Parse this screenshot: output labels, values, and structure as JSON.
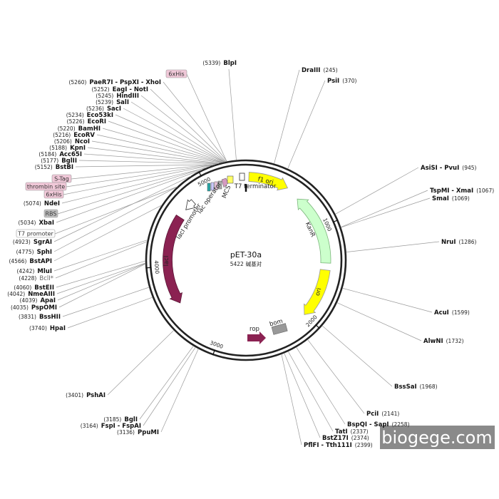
{
  "map": {
    "title": "pET-30a",
    "length": 5422,
    "length_unit": "碱基对",
    "ticks": [
      1000,
      2000,
      3000,
      4000,
      5000
    ],
    "sites": [
      {
        "name": "BlpI",
        "position": 5339,
        "position_label": "(5339)"
      },
      {
        "name": "DraIII",
        "position": 245,
        "position_label": "(245)"
      },
      {
        "name": "PsiI",
        "position": 370,
        "position_label": "(370)"
      },
      {
        "name": "AsiSI - PvuI",
        "position": 945,
        "position_label": "(945)"
      },
      {
        "name": "TspMI - XmaI",
        "position": 1067,
        "position_label": "(1067)"
      },
      {
        "name": "SmaI",
        "position": 1069,
        "position_label": "(1069)"
      },
      {
        "name": "NruI",
        "position": 1286,
        "position_label": "(1286)"
      },
      {
        "name": "AcuI",
        "position": 1599,
        "position_label": "(1599)"
      },
      {
        "name": "AlwNI",
        "position": 1732,
        "position_label": "(1732)"
      },
      {
        "name": "BssSaI",
        "position": 1968,
        "position_label": "(1968)"
      },
      {
        "name": "PciI",
        "position": 2141,
        "position_label": "(2141)"
      },
      {
        "name": "BspQI - SapI",
        "position": 2258,
        "position_label": "(2258)"
      },
      {
        "name": "TatI",
        "position": 2337,
        "position_label": "(2337)"
      },
      {
        "name": "BstZ17I",
        "position": 2374,
        "position_label": "(2374)"
      },
      {
        "name": "PflFI - Tth111I",
        "position": 2399,
        "position_label": "(2399)"
      },
      {
        "name": "PaeR7I - PspXI - XhoI",
        "position": 5260,
        "position_label": "(5260)"
      },
      {
        "name": "EagI - NotI",
        "position": 5252,
        "position_label": "(5252)"
      },
      {
        "name": "HindIII",
        "position": 5245,
        "position_label": "(5245)"
      },
      {
        "name": "SalI",
        "position": 5239,
        "position_label": "(5239)"
      },
      {
        "name": "SacI",
        "position": 5236,
        "position_label": "(5236)"
      },
      {
        "name": "Eco53kI",
        "position": 5234,
        "position_label": "(5234)"
      },
      {
        "name": "EcoRI",
        "position": 5226,
        "position_label": "(5226)"
      },
      {
        "name": "BamHI",
        "position": 5220,
        "position_label": "(5220)"
      },
      {
        "name": "EcoRV",
        "position": 5216,
        "position_label": "(5216)"
      },
      {
        "name": "NcoI",
        "position": 5206,
        "position_label": "(5206)"
      },
      {
        "name": "KpnI",
        "position": 5188,
        "position_label": "(5188)"
      },
      {
        "name": "Acc65I",
        "position": 5184,
        "position_label": "(5184)"
      },
      {
        "name": "BglII",
        "position": 5177,
        "position_label": "(5177)"
      },
      {
        "name": "BstBI",
        "position": 5152,
        "position_label": "(5152)"
      },
      {
        "name": "NdeI",
        "position": 5074,
        "position_label": "(5074)"
      },
      {
        "name": "XbaI",
        "position": 5034,
        "position_label": "(5034)"
      },
      {
        "name": "SgrAI",
        "position": 4923,
        "position_label": "(4923)"
      },
      {
        "name": "SphI",
        "position": 4775,
        "position_label": "(4775)"
      },
      {
        "name": "BstAPI",
        "position": 4566,
        "position_label": "(4566)"
      },
      {
        "name": "MluI",
        "position": 4242,
        "position_label": "(4242)"
      },
      {
        "name": "BclI*",
        "position": 4228,
        "position_label": "(4228)"
      },
      {
        "name": "BstEII",
        "position": 4060,
        "position_label": "(4060)"
      },
      {
        "name": "NmeAIII",
        "position": 4042,
        "position_label": "(4042)"
      },
      {
        "name": "ApaI",
        "position": 4039,
        "position_label": "(4039)"
      },
      {
        "name": "PspOMI",
        "position": 4035,
        "position_label": "(4035)"
      },
      {
        "name": "BssHII",
        "position": 3831,
        "position_label": "(3831)"
      },
      {
        "name": "HpaI",
        "position": 3740,
        "position_label": "(3740)"
      },
      {
        "name": "PshAI",
        "position": 3401,
        "position_label": "(3401)"
      },
      {
        "name": "BglI",
        "position": 3185,
        "position_label": "(3185)"
      },
      {
        "name": "FspI - FspAI",
        "position": 3164,
        "position_label": "(3164)"
      },
      {
        "name": "PpuMI",
        "position": 3136,
        "position_label": "(3136)"
      }
    ],
    "features": [
      "f1 ori",
      "KanR",
      "ori",
      "bom",
      "rop",
      "lacI",
      "lacI promoter",
      "lac operator",
      "MCS",
      "T7 terminator"
    ],
    "annotations": [
      "6xHis",
      "S-Tag",
      "thrombin site",
      "6xHis",
      "RBS",
      "T7 promoter"
    ]
  },
  "watermark": "biogege.com"
}
